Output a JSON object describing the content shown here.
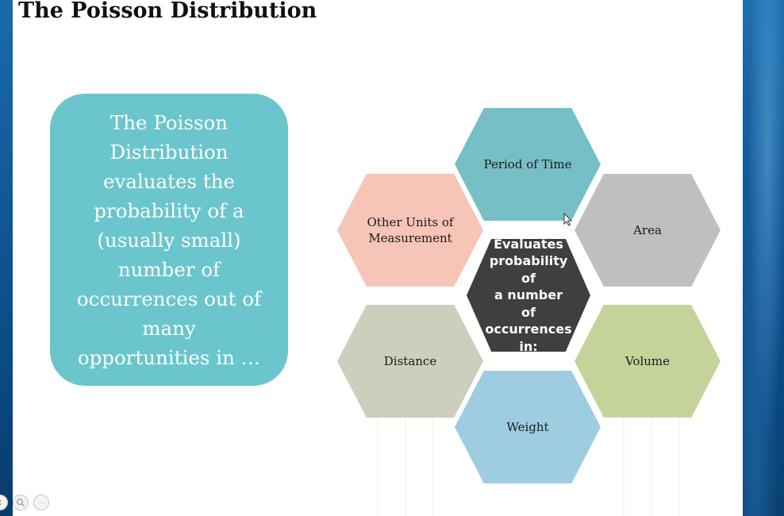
{
  "slide": {
    "title": "The Poisson Distribution",
    "card_lines": [
      "The Poisson",
      "Distribution",
      "evaluates the",
      "probability of a",
      "(usually small)",
      "number of",
      "occurrences out of",
      "many",
      "opportunities in …"
    ],
    "hexagons": {
      "center": [
        "Evaluates",
        "probability of",
        "a number of",
        "occurrences",
        "in:"
      ],
      "top": "Period of Time",
      "upper_right": "Area",
      "lower_right": "Volume",
      "bottom": "Weight",
      "lower_left": "Distance",
      "upper_left": [
        "Other Units of",
        "Measurement"
      ]
    }
  },
  "colors": {
    "card": "#6ac6cc",
    "center_hex": "#3f3f3f",
    "top_hex": "#77bfc6",
    "upper_right_hex": "#bfbfbf",
    "lower_right_hex": "#c5d39a",
    "bottom_hex": "#9ecce1",
    "lower_left_hex": "#cdcebb",
    "upper_left_hex": "#f7c4b8"
  },
  "controls": {
    "icons": [
      "previous-slide-icon",
      "zoom-icon",
      "more-options-icon"
    ],
    "more_glyph": "···"
  }
}
